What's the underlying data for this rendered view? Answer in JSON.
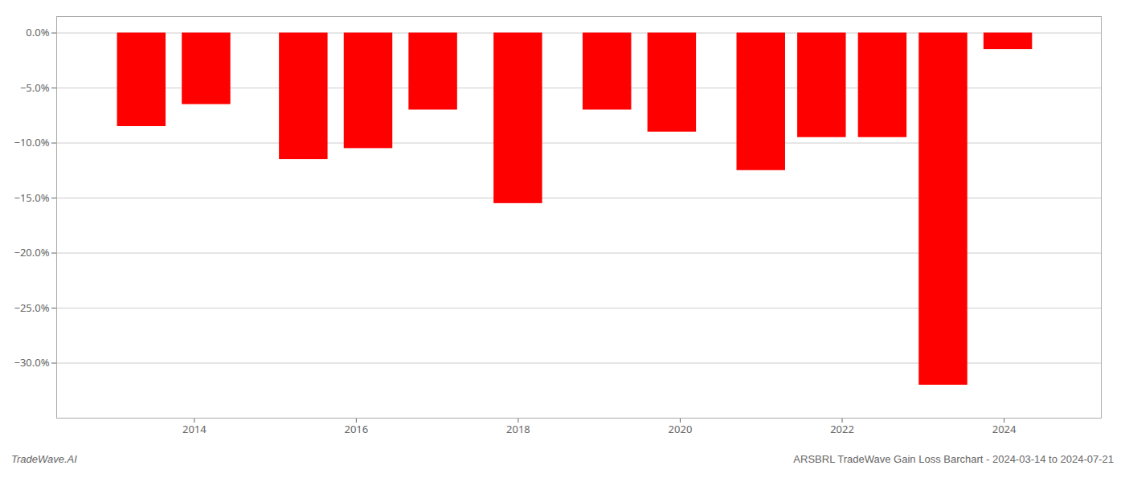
{
  "chart_data": {
    "type": "bar",
    "x": [
      2013.35,
      2014.15,
      2015.35,
      2016.15,
      2016.95,
      2018.0,
      2019.1,
      2019.9,
      2021.0,
      2021.75,
      2022.5,
      2023.25,
      2024.05
    ],
    "values": [
      -8.5,
      -6.5,
      -11.5,
      -10.5,
      -7.0,
      -15.5,
      -7.0,
      -9.0,
      -12.5,
      -9.5,
      -9.5,
      -32.0,
      -1.5
    ],
    "color": "#ff0000",
    "xlim": [
      2012.3,
      2025.2
    ],
    "xticks": [
      2014,
      2016,
      2018,
      2020,
      2022,
      2024
    ],
    "ylim": [
      -35.0,
      1.5
    ],
    "yticks": [
      {
        "value": 0,
        "label": "0.0%"
      },
      {
        "value": -5,
        "label": "−5.0%"
      },
      {
        "value": -10,
        "label": "−10.0%"
      },
      {
        "value": -15,
        "label": "−15.0%"
      },
      {
        "value": -20,
        "label": "−20.0%"
      },
      {
        "value": -25,
        "label": "−25.0%"
      },
      {
        "value": -30,
        "label": "−30.0%"
      }
    ],
    "grid": true,
    "annotations": [
      "TradeWave.AI",
      "ARSBRL TradeWave Gain Loss Barchart - 2024-03-14 to 2024-07-21"
    ]
  }
}
